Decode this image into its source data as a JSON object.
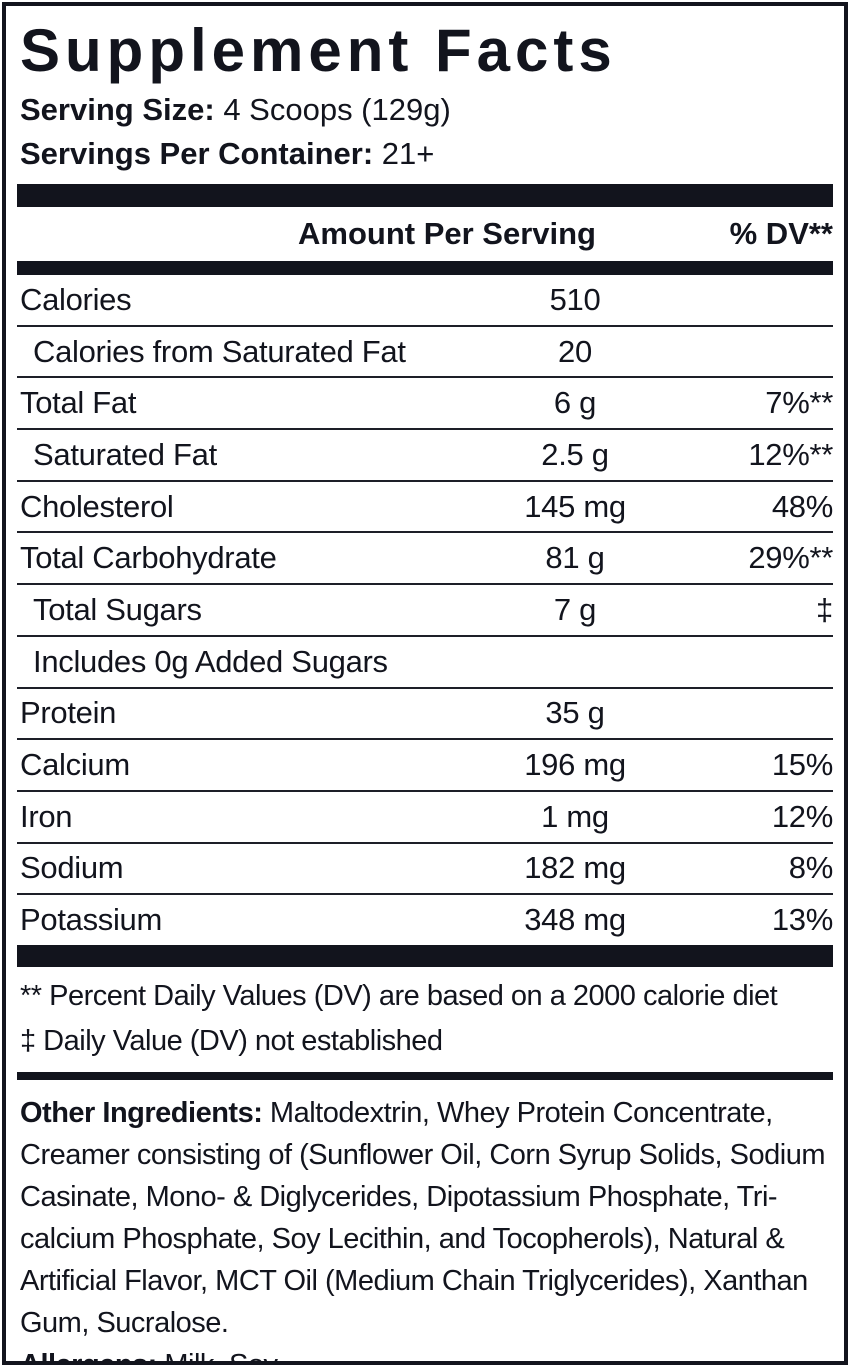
{
  "label": {
    "title": "Supplement Facts",
    "serving_size_label": "Serving Size:",
    "serving_size_value": "4 Scoops (129g)",
    "servings_per_container_label": "Servings Per Container:",
    "servings_per_container_value": "21+",
    "columns": {
      "amount": "Amount Per Serving",
      "dv": "% DV**"
    },
    "rows": [
      {
        "name": "Calories",
        "amount": "510",
        "dv": "",
        "indent": false
      },
      {
        "name": "Calories from Saturated Fat",
        "amount": "20",
        "dv": "",
        "indent": true
      },
      {
        "name": "Total Fat",
        "amount": "6 g",
        "dv": "7%**",
        "indent": false
      },
      {
        "name": "Saturated Fat",
        "amount": "2.5 g",
        "dv": "12%**",
        "indent": true
      },
      {
        "name": "Cholesterol",
        "amount": "145 mg",
        "dv": "48%",
        "indent": false
      },
      {
        "name": "Total Carbohydrate",
        "amount": "81 g",
        "dv": "29%**",
        "indent": false
      },
      {
        "name": "Total Sugars",
        "amount": "7 g",
        "dv": "‡",
        "indent": true
      },
      {
        "name": "Includes 0g Added Sugars",
        "amount": "",
        "dv": "",
        "indent": true
      },
      {
        "name": "Protein",
        "amount": "35 g",
        "dv": "",
        "indent": false
      },
      {
        "name": "Calcium",
        "amount": "196 mg",
        "dv": "15%",
        "indent": false
      },
      {
        "name": "Iron",
        "amount": "1 mg",
        "dv": "12%",
        "indent": false
      },
      {
        "name": "Sodium",
        "amount": "182 mg",
        "dv": "8%",
        "indent": false
      },
      {
        "name": "Potassium",
        "amount": "348 mg",
        "dv": "13%",
        "indent": false
      }
    ],
    "footnotes": {
      "percent_dv_note": "** Percent Daily Values (DV) are based on a 2000 calorie diet",
      "not_established_note": "‡ Daily Value (DV) not established"
    },
    "other_ingredients_label": "Other Ingredients:",
    "other_ingredients_text": " Maltodextrin, Whey Protein Concentrate, Creamer consisting of (Sunflower Oil, Corn Syrup Solids, Sodium Casinate, Mono- & Diglycerides, Dipotassium Phosphate, Tri-calcium Phosphate, Soy Lecithin, and Tocopherols), Natural & Artificial Flavor, MCT Oil (Medium Chain Triglycerides), Xanthan Gum, Sucralose.",
    "allergens_label": "Allergens:",
    "allergens_text": " Milk, Soy.",
    "colors": {
      "ink": "#12141d",
      "paper": "#ffffff"
    }
  }
}
